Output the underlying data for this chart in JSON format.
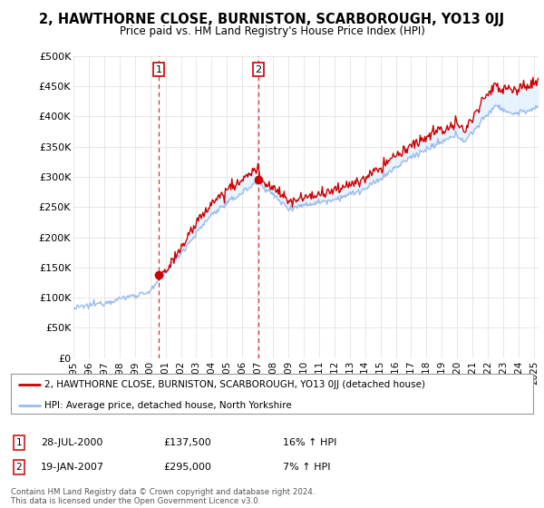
{
  "title": "2, HAWTHORNE CLOSE, BURNISTON, SCARBOROUGH, YO13 0JJ",
  "subtitle": "Price paid vs. HM Land Registry's House Price Index (HPI)",
  "ylabel_ticks": [
    "£0",
    "£50K",
    "£100K",
    "£150K",
    "£200K",
    "£250K",
    "£300K",
    "£350K",
    "£400K",
    "£450K",
    "£500K"
  ],
  "ytick_values": [
    0,
    50000,
    100000,
    150000,
    200000,
    250000,
    300000,
    350000,
    400000,
    450000,
    500000
  ],
  "ylim": [
    0,
    500000
  ],
  "xlim_start": 1995.0,
  "xlim_end": 2025.3,
  "transaction1_x": 2000.55,
  "transaction1_y": 137500,
  "transaction2_x": 2007.05,
  "transaction2_y": 295000,
  "transaction1_label": "28-JUL-2000",
  "transaction1_price": "£137,500",
  "transaction1_hpi": "16% ↑ HPI",
  "transaction2_label": "19-JAN-2007",
  "transaction2_price": "£295,000",
  "transaction2_hpi": "7% ↑ HPI",
  "legend_property": "2, HAWTHORNE CLOSE, BURNISTON, SCARBOROUGH, YO13 0JJ (detached house)",
  "legend_hpi": "HPI: Average price, detached house, North Yorkshire",
  "footer": "Contains HM Land Registry data © Crown copyright and database right 2024.\nThis data is licensed under the Open Government Licence v3.0.",
  "line_color_property": "#cc0000",
  "line_color_hpi": "#99bbee",
  "dashed_line_color": "#cc0000",
  "background_color": "#ffffff",
  "grid_color": "#dddddd",
  "shade_color": "#ddeeff",
  "xtick_years": [
    1995,
    1996,
    1997,
    1998,
    1999,
    2000,
    2001,
    2002,
    2003,
    2004,
    2005,
    2006,
    2007,
    2008,
    2009,
    2010,
    2011,
    2012,
    2013,
    2014,
    2015,
    2016,
    2017,
    2018,
    2019,
    2020,
    2021,
    2022,
    2023,
    2024,
    2025
  ]
}
